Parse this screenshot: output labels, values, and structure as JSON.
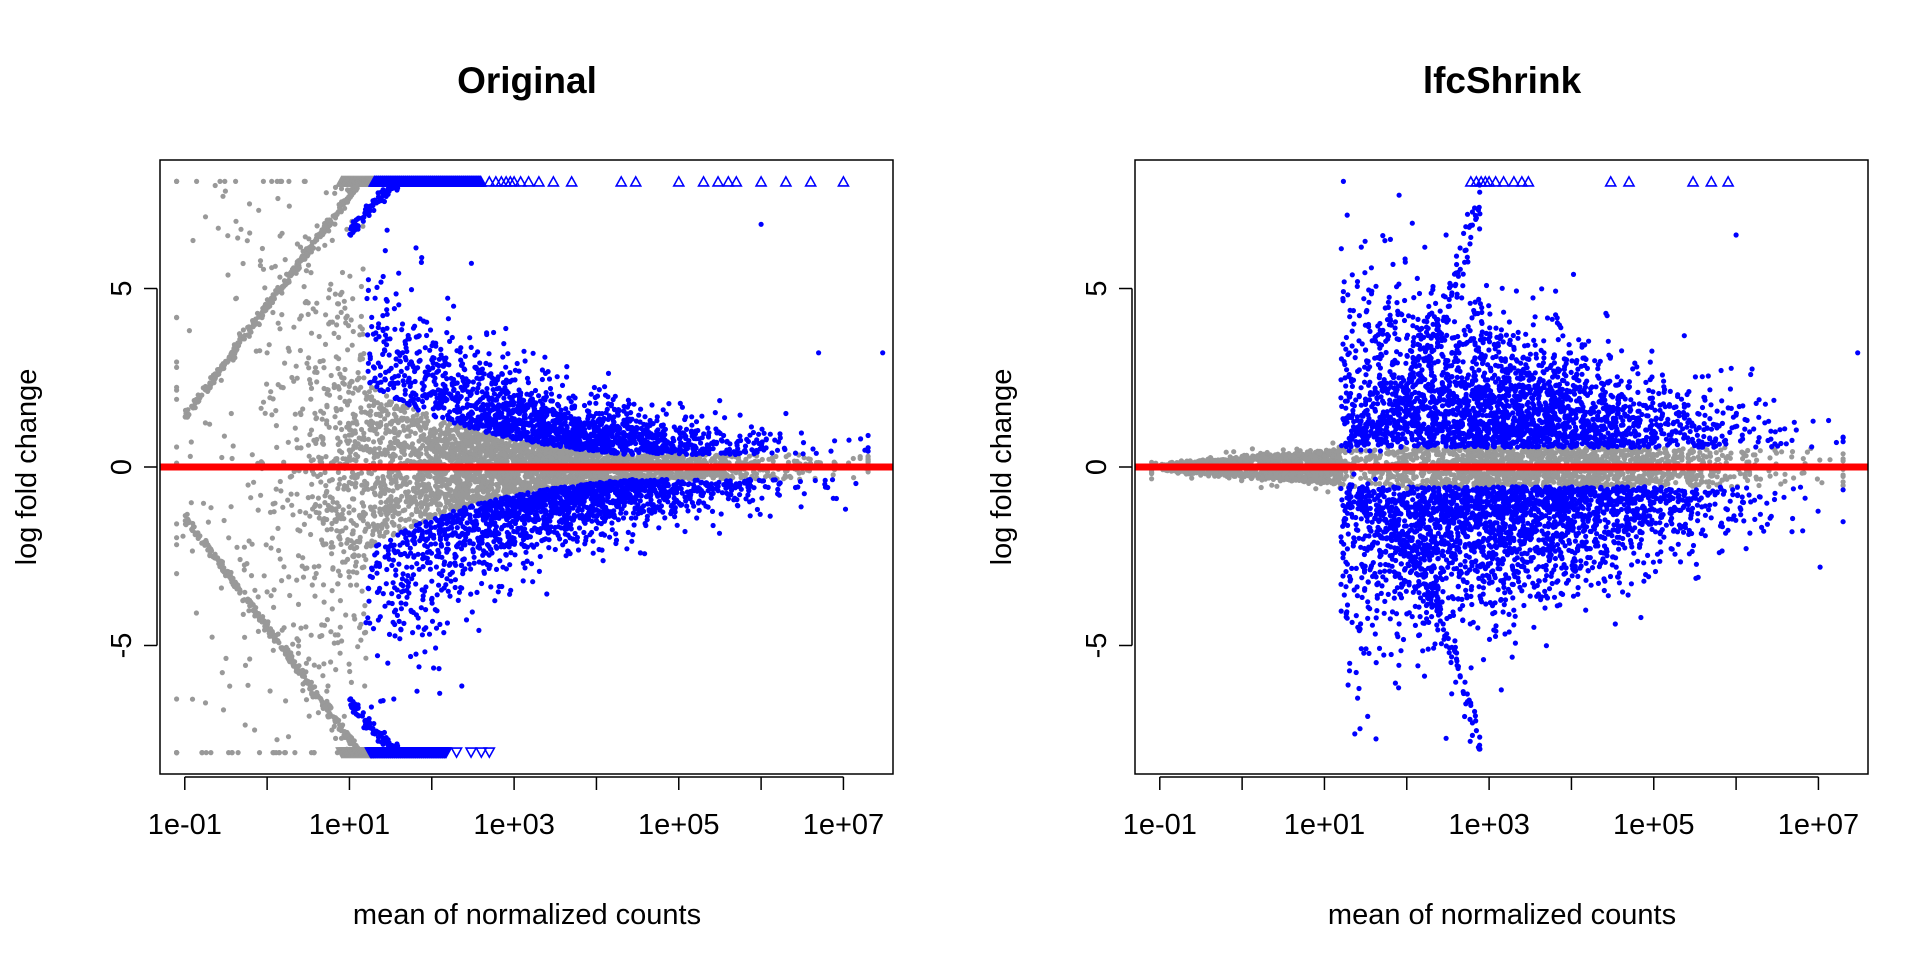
{
  "colors": {
    "non_significant": "#999999",
    "significant": "#0000ff",
    "zero_line": "#ff0000",
    "axes": "#000000",
    "background": "#ffffff"
  },
  "chart_data": [
    {
      "type": "scatter",
      "title": "Original",
      "xlabel": "mean of normalized counts",
      "ylabel": "log fold change",
      "x_scale": "log10",
      "xlim": [
        0.05,
        40000000
      ],
      "ylim": [
        -8.6,
        8.6
      ],
      "x_ticks": [
        0.1,
        1,
        10,
        100,
        1000,
        10000,
        100000,
        1000000,
        10000000
      ],
      "x_tick_labels": [
        "1e-01",
        "",
        "1e+01",
        "",
        "1e+03",
        "",
        "1e+05",
        "",
        "1e+07"
      ],
      "y_ticks": [
        -5,
        0,
        5
      ],
      "y_tick_labels": [
        "-5",
        "0",
        "5"
      ],
      "clip_value": 8,
      "reference_line_y": 0,
      "grid": false,
      "legend": "none",
      "series": [
        {
          "key": "not_significant",
          "color": "#999999",
          "marker": "circle",
          "sample_points": [
            [
              0.12,
              0.7
            ],
            [
              0.12,
              -1.0
            ],
            [
              0.2,
              1.2
            ],
            [
              0.3,
              -1.5
            ],
            [
              1,
              3.2
            ],
            [
              1,
              -3.5
            ],
            [
              3,
              5.5
            ],
            [
              3,
              -5.5
            ],
            [
              8,
              7.8
            ],
            [
              8,
              -7.6
            ],
            [
              15,
              2.5
            ],
            [
              15,
              -2.8
            ],
            [
              30,
              1.0
            ],
            [
              30,
              -1.2
            ],
            [
              60,
              0.5
            ],
            [
              60,
              -0.6
            ]
          ],
          "clipped_triangles_x_range": [
            8,
            20
          ]
        },
        {
          "key": "significant",
          "color": "#0000ff",
          "marker": "circle",
          "sample_points": [
            [
              15,
              7.0
            ],
            [
              15,
              -7.3
            ],
            [
              100,
              3.0
            ],
            [
              100,
              -3.2
            ],
            [
              1000,
              2.0
            ],
            [
              1000,
              -2.0
            ],
            [
              10000,
              1.5
            ],
            [
              10000,
              -1.5
            ],
            [
              100000,
              1.0
            ],
            [
              100000,
              -1.0
            ],
            [
              1000000,
              6.8
            ],
            [
              2000000,
              1.5
            ],
            [
              5000000,
              3.2
            ],
            [
              30000000,
              3.2
            ]
          ],
          "clipped_triangles_top_x": [
            500,
            600,
            700,
            800,
            900,
            1000,
            1200,
            1500,
            2000,
            3000,
            5000,
            20000,
            30000,
            100000,
            200000,
            300000,
            400000,
            500000,
            1000000,
            2000000,
            4000000,
            10000000
          ],
          "clipped_triangles_bottom_x": [
            200,
            300,
            400,
            500
          ]
        }
      ]
    },
    {
      "type": "scatter",
      "title": "lfcShrink",
      "xlabel": "mean of normalized counts",
      "ylabel": "log fold change",
      "x_scale": "log10",
      "xlim": [
        0.05,
        40000000
      ],
      "ylim": [
        -8.6,
        8.6
      ],
      "x_ticks": [
        0.1,
        1,
        10,
        100,
        1000,
        10000,
        100000,
        1000000,
        10000000
      ],
      "x_tick_labels": [
        "1e-01",
        "",
        "1e+01",
        "",
        "1e+03",
        "",
        "1e+05",
        "",
        "1e+07"
      ],
      "y_ticks": [
        -5,
        0,
        5
      ],
      "y_tick_labels": [
        "-5",
        "0",
        "5"
      ],
      "clip_value": 8,
      "reference_line_y": 0,
      "grid": false,
      "legend": "none",
      "series": [
        {
          "key": "not_significant",
          "color": "#999999",
          "marker": "circle",
          "sample_points": [
            [
              0.1,
              0.0
            ],
            [
              0.5,
              0.1
            ],
            [
              1,
              0.3
            ],
            [
              1,
              -0.3
            ],
            [
              10,
              0.3
            ],
            [
              10,
              -0.4
            ],
            [
              100,
              0.5
            ],
            [
              100,
              -0.6
            ],
            [
              1000,
              0.4
            ],
            [
              1000,
              -0.5
            ],
            [
              10000,
              0.2
            ]
          ]
        },
        {
          "key": "significant",
          "color": "#0000ff",
          "marker": "circle",
          "sample_points": [
            [
              20,
              0.8
            ],
            [
              20,
              -0.9
            ],
            [
              80,
              2.5
            ],
            [
              80,
              -3.0
            ],
            [
              300,
              6.5
            ],
            [
              300,
              -7.6
            ],
            [
              1000,
              2.0
            ],
            [
              1000,
              -2.0
            ],
            [
              10000,
              1.5
            ],
            [
              10000,
              -1.5
            ],
            [
              100000,
              1.0
            ],
            [
              100000,
              -1.0
            ],
            [
              1000000,
              6.5
            ],
            [
              30000000,
              3.2
            ]
          ],
          "clipped_triangles_top_x": [
            600,
            700,
            800,
            900,
            1000,
            1200,
            1500,
            2000,
            2500,
            3000,
            30000,
            50000,
            300000,
            500000,
            800000
          ],
          "clipped_triangles_bottom_x": []
        }
      ]
    }
  ]
}
